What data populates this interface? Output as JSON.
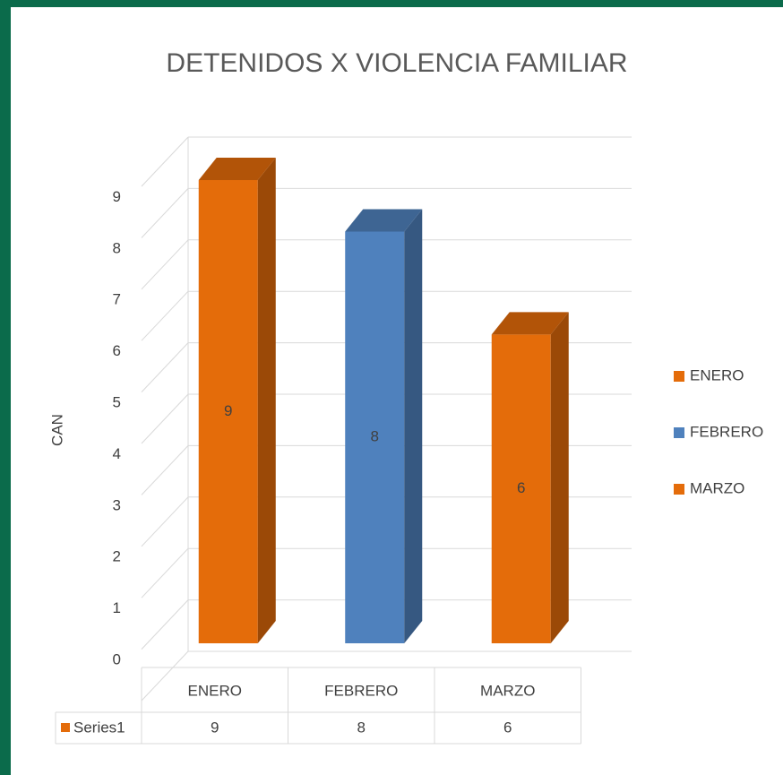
{
  "chart_data": {
    "type": "bar3d",
    "title": "DETENIDOS X VIOLENCIA FAMILIAR",
    "y_label": "CAN",
    "categories": [
      "ENERO",
      "FEBRERO",
      "MARZO"
    ],
    "series_name": "Series1",
    "values": [
      9,
      8,
      6
    ],
    "colors": [
      "#e46c0a",
      "#4f81bd",
      "#e46c0a"
    ],
    "ylim": [
      0,
      10
    ],
    "yticks": [
      0,
      1,
      2,
      3,
      4,
      5,
      6,
      7,
      8,
      9
    ],
    "grid": true,
    "legend": "right",
    "data_table": true
  }
}
